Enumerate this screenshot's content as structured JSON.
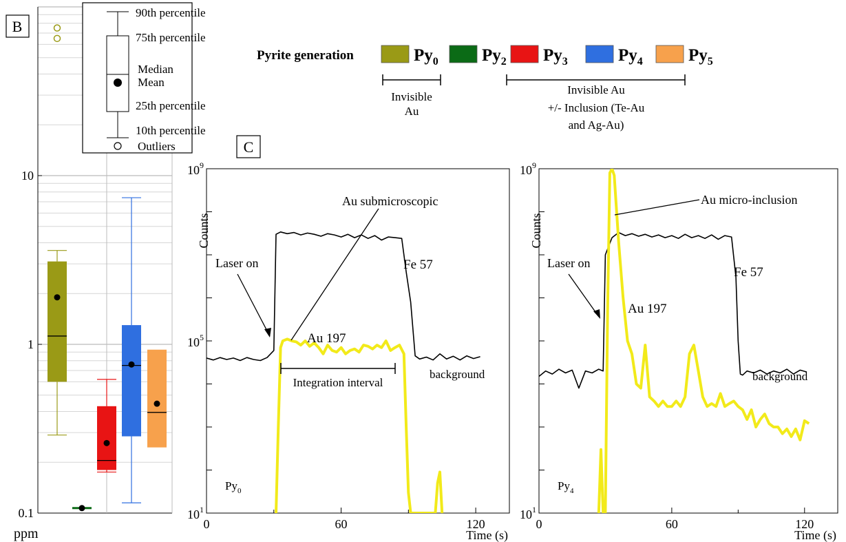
{
  "panel_b": {
    "label": "B",
    "unit": "ppm",
    "legend_items": {
      "p90": "90th percentile",
      "p75": "75th percentile",
      "median": "Median",
      "mean": "Mean",
      "p25": "25th percentile",
      "p10": "10th percentile",
      "outliers": "Outliers"
    }
  },
  "panel_c": {
    "label": "C"
  },
  "generation": {
    "heading": "Pyrite generation",
    "items": [
      {
        "main": "Py",
        "sub": "0",
        "color": "#9a9a16"
      },
      {
        "main": "Py",
        "sub": "2",
        "color": "#0b6b16"
      },
      {
        "main": "Py",
        "sub": "3",
        "color": "#e81414"
      },
      {
        "main": "Py",
        "sub": "4",
        "color": "#2f6fe0"
      },
      {
        "main": "Py",
        "sub": "5",
        "color": "#f7a14c"
      }
    ],
    "bracket1_lines": [
      "Invisible",
      "Au"
    ],
    "bracket2_lines": [
      "Invisible Au",
      "+/- Inclusion (Te-Au",
      "and Ag-Au)"
    ]
  },
  "chart_data": [
    {
      "type": "box",
      "yscale": "log",
      "ylim": [
        0.1,
        100
      ],
      "yticks": [
        0.1,
        1,
        10
      ],
      "ytick_labels": [
        "0.1",
        "1",
        "10"
      ],
      "ylabel": "ppm",
      "series": [
        {
          "name": "Py0",
          "color": "#9a9a16",
          "whisker_low": 0.29,
          "q1": 0.6,
          "median": 1.12,
          "q3": 3.1,
          "whisker_high": 3.6,
          "mean": 1.9,
          "outliers": [
            65,
            75
          ]
        },
        {
          "name": "Py2",
          "color": "#0b6b16",
          "median": 0.107,
          "mean": 0.107
        },
        {
          "name": "Py3",
          "color": "#e81414",
          "whisker_low": 0.175,
          "q1": 0.18,
          "median": 0.205,
          "q3": 0.43,
          "whisker_high": 0.62,
          "mean": 0.26
        },
        {
          "name": "Py4",
          "color": "#2f6fe0",
          "whisker_low": 0.115,
          "q1": 0.285,
          "median": 0.75,
          "q3": 1.3,
          "whisker_high": 7.4,
          "mean": 0.76
        },
        {
          "name": "Py5",
          "color": "#f7a14c",
          "q1": 0.245,
          "median": 0.395,
          "q3": 0.93,
          "mean": 0.445
        }
      ]
    },
    {
      "type": "line",
      "yscale": "log",
      "xlim": [
        0,
        135
      ],
      "ylim": [
        10,
        1000000000
      ],
      "xticks": [
        0,
        60,
        120
      ],
      "xtick_labels": [
        "0",
        "60",
        "120"
      ],
      "xlabel": "Time (s)",
      "ylabel": "Counts",
      "ytick_labels": [
        {
          "base": "10",
          "exp": "1"
        },
        {
          "base": "10",
          "exp": "5"
        },
        {
          "base": "10",
          "exp": "9"
        }
      ],
      "sample": {
        "main": "Py",
        "sub": "0"
      },
      "series": [
        {
          "name": "Fe 57",
          "color": "#000000",
          "x": [
            0,
            3,
            6,
            9,
            12,
            15,
            18,
            21,
            24,
            27,
            30,
            31,
            33,
            36,
            39,
            42,
            45,
            48,
            51,
            54,
            57,
            60,
            63,
            66,
            69,
            72,
            75,
            78,
            81,
            84,
            87,
            89,
            91,
            93,
            95,
            98,
            101,
            104,
            107,
            110,
            113,
            116,
            119,
            122
          ],
          "y": [
            40000,
            36000,
            41000,
            37000,
            40000,
            35000,
            41000,
            37000,
            35000,
            41000,
            60000,
            30000000,
            34000000,
            31000000,
            33000000,
            29000000,
            32000000,
            30000000,
            27000000,
            31000000,
            29000000,
            26000000,
            30000000,
            25000000,
            29000000,
            24000000,
            28000000,
            22000000,
            26000000,
            25000000,
            24000000,
            4000000,
            800000,
            45000,
            38000,
            42000,
            36000,
            50000,
            38000,
            44000,
            36000,
            45000,
            39000,
            43000
          ]
        },
        {
          "name": "Au 197",
          "color": "#f2ea1a",
          "x": [
            31,
            32,
            33,
            34,
            36,
            38,
            40,
            42,
            44,
            46,
            48,
            50,
            52,
            54,
            56,
            58,
            60,
            62,
            64,
            66,
            68,
            70,
            72,
            74,
            76,
            78,
            80,
            82,
            84,
            86,
            88,
            89,
            90,
            91,
            102,
            103,
            104,
            105
          ],
          "y": [
            10,
            1000,
            70000,
            100000,
            110000,
            100000,
            95000,
            80000,
            100000,
            75000,
            90000,
            70000,
            50000,
            80000,
            60000,
            55000,
            70000,
            50000,
            60000,
            65000,
            55000,
            80000,
            75000,
            65000,
            80000,
            70000,
            100000,
            60000,
            70000,
            80000,
            50000,
            1000,
            30,
            10,
            10,
            50,
            90,
            10
          ]
        }
      ],
      "annotations": [
        "Au submicroscopic",
        "Laser on",
        "Fe 57",
        "Au 197",
        "Integration interval",
        "background"
      ]
    },
    {
      "type": "line",
      "yscale": "log",
      "xlim": [
        0,
        135
      ],
      "ylim": [
        10,
        1000000000
      ],
      "xticks": [
        0,
        60,
        120
      ],
      "xtick_labels": [
        "0",
        "60",
        "120"
      ],
      "xlabel": "Time (s)",
      "ylabel": "Counts",
      "ytick_labels": [
        {
          "base": "10",
          "exp": "1"
        },
        {
          "base": "10",
          "exp": "9"
        }
      ],
      "sample": {
        "main": "Py",
        "sub": "4"
      },
      "series": [
        {
          "name": "Fe 57",
          "color": "#000000",
          "x": [
            0,
            3,
            6,
            9,
            12,
            15,
            18,
            21,
            24,
            27,
            29,
            30,
            33,
            36,
            39,
            42,
            45,
            48,
            51,
            54,
            57,
            60,
            63,
            66,
            69,
            72,
            75,
            78,
            81,
            84,
            87,
            89,
            90,
            91,
            92,
            94,
            97,
            100,
            103,
            106,
            109,
            112,
            115,
            118,
            121
          ],
          "y": [
            15000,
            20000,
            17000,
            22000,
            18000,
            21000,
            8000,
            20000,
            18000,
            22000,
            20000,
            10000000,
            25000000,
            33000000,
            28000000,
            31000000,
            27000000,
            30000000,
            26000000,
            29000000,
            25000000,
            28000000,
            24000000,
            30000000,
            25000000,
            28000000,
            24000000,
            29000000,
            23000000,
            28000000,
            26000000,
            3000000,
            100000,
            17000,
            16000,
            20000,
            18000,
            21000,
            17000,
            20000,
            18000,
            22000,
            17000,
            21000,
            19000
          ]
        },
        {
          "name": "Au 197",
          "color": "#f2ea1a",
          "x": [
            27,
            28,
            29,
            30,
            31,
            32,
            33,
            34,
            36,
            38,
            40,
            42,
            44,
            46,
            48,
            50,
            52,
            54,
            56,
            58,
            60,
            62,
            64,
            66,
            68,
            70,
            72,
            74,
            76,
            78,
            80,
            82,
            84,
            86,
            88,
            90,
            92,
            94,
            96,
            98,
            100,
            102,
            104,
            106,
            108,
            110,
            112,
            114,
            116,
            118,
            120,
            122
          ],
          "y": [
            10,
            300,
            10,
            10,
            500000,
            800000000,
            1000000000,
            700000000,
            20000000,
            1000000,
            100000,
            50000,
            10000,
            8000,
            80000,
            5000,
            4000,
            3000,
            4000,
            3000,
            3000,
            4000,
            3000,
            5000,
            50000,
            80000,
            20000,
            5000,
            3000,
            3500,
            3000,
            6000,
            3000,
            3500,
            4000,
            3000,
            2500,
            1500,
            2500,
            1000,
            1500,
            2000,
            1200,
            1000,
            1000,
            700,
            900,
            600,
            900,
            500,
            1400,
            1200
          ]
        }
      ],
      "annotations": [
        "Au micro-inclusion",
        "Laser on",
        "Fe 57",
        "Au 197",
        "background"
      ]
    }
  ]
}
